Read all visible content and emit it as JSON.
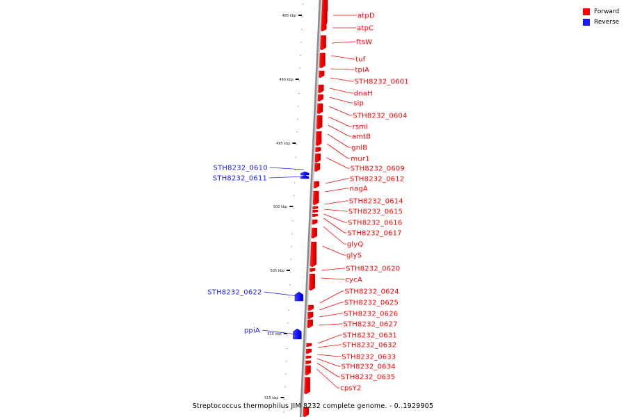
{
  "colors": {
    "forward": "#ff0000",
    "reverse": "#1a1aff",
    "backbone": "#9a9a9a"
  },
  "legend": [
    {
      "label": "Forward",
      "strand": "forward"
    },
    {
      "label": "Reverse",
      "strand": "reverse"
    }
  ],
  "caption": "Streptococcus thermophilus JIM 8232 complete genome. - 0..1929905",
  "ticks": [
    "485 kbp",
    "490 kbp",
    "495 kbp",
    "500 kbp",
    "505 kbp",
    "510 kbp",
    "515 kbp"
  ],
  "genes": [
    {
      "name": "atpD",
      "strand": "forward"
    },
    {
      "name": "atpC",
      "strand": "forward"
    },
    {
      "name": "ftsW",
      "strand": "forward"
    },
    {
      "name": "tuf",
      "strand": "forward"
    },
    {
      "name": "tpiA",
      "strand": "forward"
    },
    {
      "name": "STH8232_0601",
      "strand": "forward"
    },
    {
      "name": "dnaH",
      "strand": "forward"
    },
    {
      "name": "sip",
      "strand": "forward"
    },
    {
      "name": "STH8232_0604",
      "strand": "forward"
    },
    {
      "name": "rsmI",
      "strand": "forward"
    },
    {
      "name": "amtB",
      "strand": "forward"
    },
    {
      "name": "gnlB",
      "strand": "forward"
    },
    {
      "name": "mur1",
      "strand": "forward"
    },
    {
      "name": "STH8232_0609",
      "strand": "forward"
    },
    {
      "name": "STH8232_0610",
      "strand": "reverse"
    },
    {
      "name": "STH8232_0611",
      "strand": "reverse"
    },
    {
      "name": "STH8232_0612",
      "strand": "forward"
    },
    {
      "name": "nagA",
      "strand": "forward"
    },
    {
      "name": "STH8232_0614",
      "strand": "forward"
    },
    {
      "name": "STH8232_0615",
      "strand": "forward"
    },
    {
      "name": "STH8232_0616",
      "strand": "forward"
    },
    {
      "name": "STH8232_0617",
      "strand": "forward"
    },
    {
      "name": "glyQ",
      "strand": "forward"
    },
    {
      "name": "glyS",
      "strand": "forward"
    },
    {
      "name": "STH8232_0620",
      "strand": "forward"
    },
    {
      "name": "cycA",
      "strand": "forward"
    },
    {
      "name": "STH8232_0622",
      "strand": "reverse"
    },
    {
      "name": "STH8232_0624",
      "strand": "forward"
    },
    {
      "name": "STH8232_0625",
      "strand": "forward"
    },
    {
      "name": "STH8232_0626",
      "strand": "forward"
    },
    {
      "name": "STH8232_0627",
      "strand": "forward"
    },
    {
      "name": "ppiA",
      "strand": "reverse"
    },
    {
      "name": "STH8232_0631",
      "strand": "forward"
    },
    {
      "name": "STH8232_0632",
      "strand": "forward"
    },
    {
      "name": "STH8232_0633",
      "strand": "forward"
    },
    {
      "name": "STH8232_0634",
      "strand": "forward"
    },
    {
      "name": "STH8232_0635",
      "strand": "forward"
    },
    {
      "name": "cpsY2",
      "strand": "forward"
    }
  ]
}
